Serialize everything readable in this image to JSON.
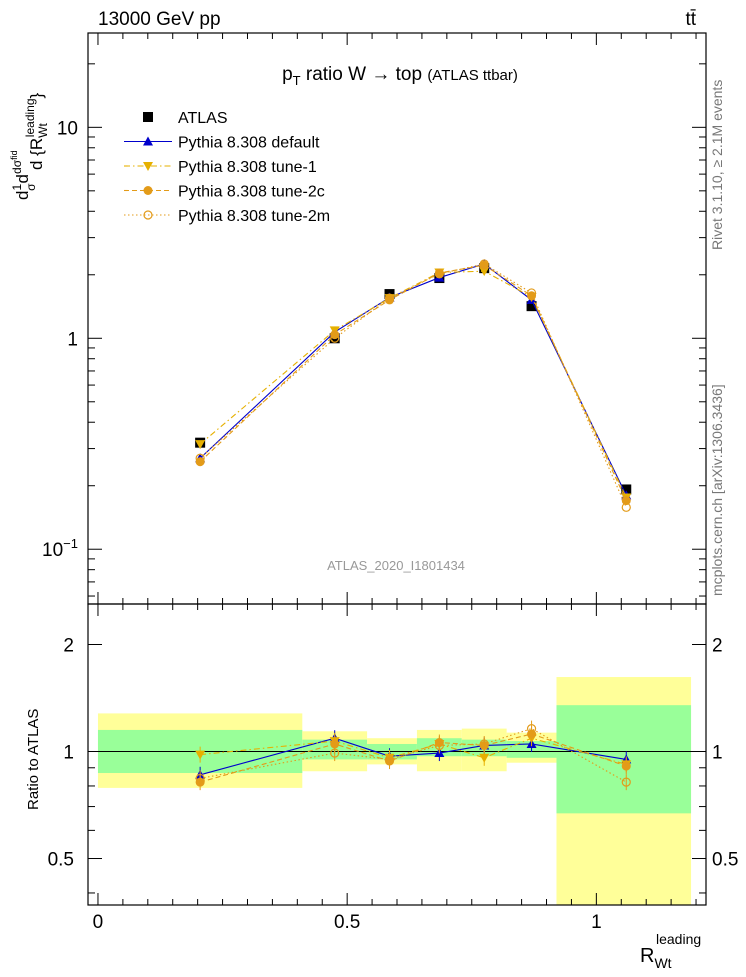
{
  "header": {
    "energy": "13000 GeV pp",
    "process": "tt̄",
    "title_main": "p",
    "title_sub": "T",
    "title_rest": " ratio W → top ",
    "title_small": "(ATLAS ttbar)",
    "analysis_id": "ATLAS_2020_I1801434",
    "side_version": "Rivet 3.1.10, ≥ 2.1M events",
    "side_source": "mcplots.cern.ch [arXiv:1306.3436]"
  },
  "axes": {
    "main_ylabel": "d{1/σ dσ^fid / d R_Wt^leading}",
    "ratio_ylabel": "Ratio to ATLAS",
    "xlabel_main": "R",
    "xlabel_sub": "Wt",
    "xlabel_sup": "leading"
  },
  "chart_data": {
    "type": "line",
    "x_ticks": [
      "0",
      "0.5",
      "1"
    ],
    "xlim": [
      -0.02,
      1.22
    ],
    "main": {
      "yscale": "log",
      "ylim": [
        0.055,
        28
      ],
      "y_tick_labels": [
        "10^-1",
        "1",
        "10"
      ],
      "legend_position": "top-left",
      "series": [
        {
          "name": "ATLAS",
          "color": "#000000",
          "marker": "square",
          "x": [
            0.205,
            0.475,
            0.585,
            0.685,
            0.775,
            0.87,
            1.06
          ],
          "y": [
            0.32,
            1.0,
            1.62,
            1.93,
            2.15,
            1.42,
            0.192
          ]
        },
        {
          "name": "Pythia 8.308 default",
          "color": "#0000cc",
          "marker": "triangle-up",
          "dash": "solid",
          "x": [
            0.205,
            0.475,
            0.585,
            0.685,
            0.775,
            0.87,
            1.06
          ],
          "y": [
            0.27,
            1.07,
            1.56,
            1.94,
            2.25,
            1.52,
            0.18
          ]
        },
        {
          "name": "Pythia 8.308 tune-1",
          "color": "#e6b000",
          "marker": "triangle-down",
          "dash": "dashdot",
          "x": [
            0.205,
            0.475,
            0.585,
            0.685,
            0.775,
            0.87,
            1.06
          ],
          "y": [
            0.315,
            1.09,
            1.55,
            2.05,
            2.08,
            1.57,
            0.176
          ]
        },
        {
          "name": "Pythia 8.308 tune-2c",
          "color": "#e39b19",
          "marker": "circle",
          "dash": "dashed",
          "x": [
            0.205,
            0.475,
            0.585,
            0.685,
            0.775,
            0.87,
            1.06
          ],
          "y": [
            0.26,
            1.04,
            1.52,
            2.04,
            2.22,
            1.59,
            0.17
          ]
        },
        {
          "name": "Pythia 8.308 tune-2m",
          "color": "#e39b19",
          "marker": "circle-open",
          "dash": "dotted",
          "x": [
            0.205,
            0.475,
            0.585,
            0.685,
            0.775,
            0.87,
            1.06
          ],
          "y": [
            0.27,
            1.0,
            1.55,
            2.02,
            2.25,
            1.64,
            0.158
          ]
        }
      ]
    },
    "ratio": {
      "ylim": [
        0.37,
        2.6
      ],
      "y_ticks": [
        0.5,
        1,
        2
      ],
      "y_tick_labels": [
        "0.5",
        "1",
        "2"
      ],
      "bands": [
        {
          "x0": 0.0,
          "x1": 0.41,
          "inner": [
            0.87,
            1.15
          ],
          "outer": [
            0.79,
            1.28
          ]
        },
        {
          "x0": 0.41,
          "x1": 0.54,
          "inner": [
            0.95,
            1.08
          ],
          "outer": [
            0.88,
            1.14
          ]
        },
        {
          "x0": 0.54,
          "x1": 0.64,
          "inner": [
            0.95,
            1.05
          ],
          "outer": [
            0.92,
            1.09
          ]
        },
        {
          "x0": 0.64,
          "x1": 0.73,
          "inner": [
            0.97,
            1.09
          ],
          "outer": [
            0.88,
            1.15
          ]
        },
        {
          "x0": 0.73,
          "x1": 0.82,
          "inner": [
            0.97,
            1.08
          ],
          "outer": [
            0.88,
            1.16
          ]
        },
        {
          "x0": 0.82,
          "x1": 0.92,
          "inner": [
            0.96,
            1.07
          ],
          "outer": [
            0.93,
            1.13
          ]
        },
        {
          "x0": 0.92,
          "x1": 1.19,
          "inner": [
            0.67,
            1.35
          ],
          "outer": [
            0.37,
            1.62
          ]
        }
      ],
      "series": [
        {
          "name": "Pythia 8.308 default",
          "color": "#0000cc",
          "marker": "triangle-up",
          "dash": "solid",
          "x": [
            0.205,
            0.475,
            0.585,
            0.685,
            0.775,
            0.87,
            1.06
          ],
          "y": [
            0.86,
            1.09,
            0.97,
            0.99,
            1.04,
            1.05,
            0.95
          ]
        },
        {
          "name": "Pythia 8.308 tune-1",
          "color": "#e6b000",
          "marker": "triangle-down",
          "dash": "dashdot",
          "x": [
            0.205,
            0.475,
            0.585,
            0.685,
            0.775,
            0.87,
            1.06
          ],
          "y": [
            0.98,
            1.07,
            0.96,
            1.05,
            0.96,
            1.09,
            0.92
          ]
        },
        {
          "name": "Pythia 8.308 tune-2c",
          "color": "#e39b19",
          "marker": "circle",
          "dash": "dashed",
          "x": [
            0.205,
            0.475,
            0.585,
            0.685,
            0.775,
            0.87,
            1.06
          ],
          "y": [
            0.82,
            1.05,
            0.94,
            1.06,
            1.04,
            1.12,
            0.91
          ]
        },
        {
          "name": "Pythia 8.308 tune-2m",
          "color": "#e39b19",
          "marker": "circle-open",
          "dash": "dotted",
          "x": [
            0.205,
            0.475,
            0.585,
            0.685,
            0.775,
            0.87,
            1.06
          ],
          "y": [
            0.84,
            0.99,
            0.95,
            1.04,
            1.05,
            1.16,
            0.82
          ]
        }
      ]
    }
  }
}
